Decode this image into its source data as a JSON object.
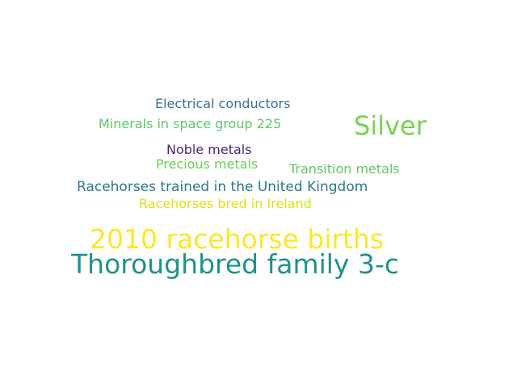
{
  "word_cloud": {
    "words": [
      {
        "key": "electrical",
        "text": "Electrical conductors",
        "color": "#3b6e8f"
      },
      {
        "key": "minerals",
        "text": "Minerals in space group 225",
        "color": "#5cc863"
      },
      {
        "key": "silver",
        "text": "Silver",
        "color": "#7ad151"
      },
      {
        "key": "noble",
        "text": "Noble metals",
        "color": "#482677"
      },
      {
        "key": "precious",
        "text": "Precious metals",
        "color": "#6ccd5a"
      },
      {
        "key": "transition",
        "text": "Transition metals",
        "color": "#5ec962"
      },
      {
        "key": "trained_uk",
        "text": "Racehorses trained in the United Kingdom",
        "color": "#2a788e"
      },
      {
        "key": "bred_ie",
        "text": "Racehorses bred in Ireland",
        "color": "#d8e219"
      },
      {
        "key": "births_2010",
        "text": "2010 racehorse births",
        "color": "#fde725"
      },
      {
        "key": "family_3c",
        "text": "Thoroughbred family 3-c",
        "color": "#21918c"
      }
    ]
  }
}
